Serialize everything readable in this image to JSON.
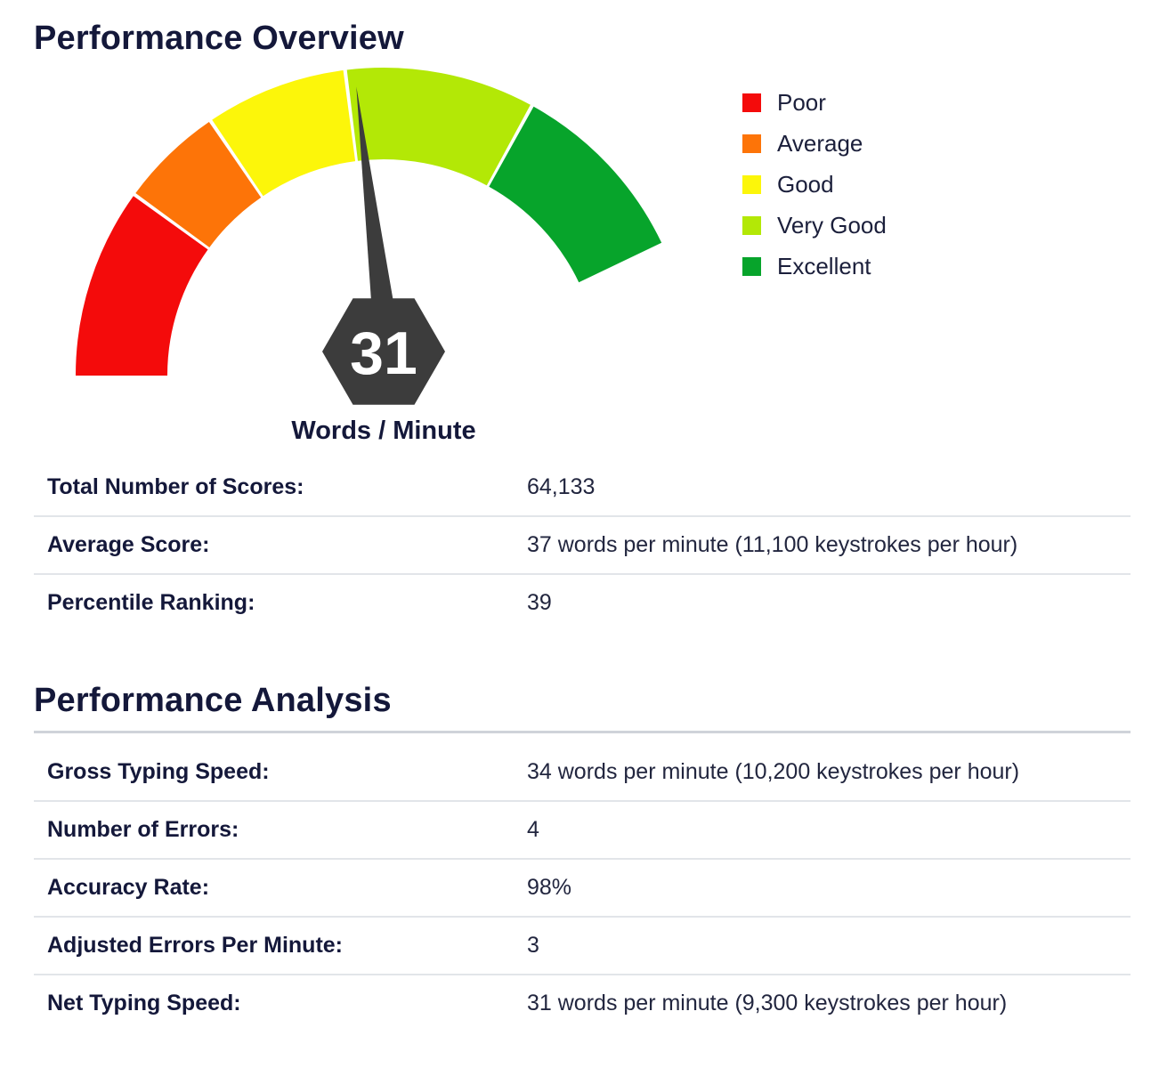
{
  "overview": {
    "title": "Performance Overview",
    "rows": [
      {
        "label": "Total Number of Scores:",
        "value": "64,133"
      },
      {
        "label": "Average Score:",
        "value": "37 words per minute (11,100 keystrokes per hour)"
      },
      {
        "label": "Percentile Ranking:",
        "value": "39"
      }
    ]
  },
  "analysis": {
    "title": "Performance Analysis",
    "rows": [
      {
        "label": "Gross Typing Speed:",
        "value": "34 words per minute (10,200 keystrokes per hour)"
      },
      {
        "label": "Number of Errors:",
        "value": "4"
      },
      {
        "label": "Accuracy Rate:",
        "value": "98%"
      },
      {
        "label": "Adjusted Errors Per Minute:",
        "value": "3"
      },
      {
        "label": "Net Typing Speed:",
        "value": "31 words per minute (9,300 keystrokes per hour)"
      }
    ]
  },
  "chart_data": {
    "type": "gauge",
    "value": 31,
    "value_text": "31",
    "unit_label": "Words / Minute",
    "bands": [
      {
        "name": "Poor",
        "color": "#f40b0b",
        "fraction": 0.2
      },
      {
        "name": "Average",
        "color": "#fd7408",
        "fraction": 0.11
      },
      {
        "name": "Good",
        "color": "#fcf60a",
        "fraction": 0.15
      },
      {
        "name": "Very Good",
        "color": "#b3e806",
        "fraction": 0.2
      },
      {
        "name": "Excellent",
        "color": "#07a42b",
        "fraction": 0.2
      }
    ],
    "needle_fraction": 0.47,
    "needle_color": "#3c3c3c",
    "legend_position": "top-right"
  }
}
